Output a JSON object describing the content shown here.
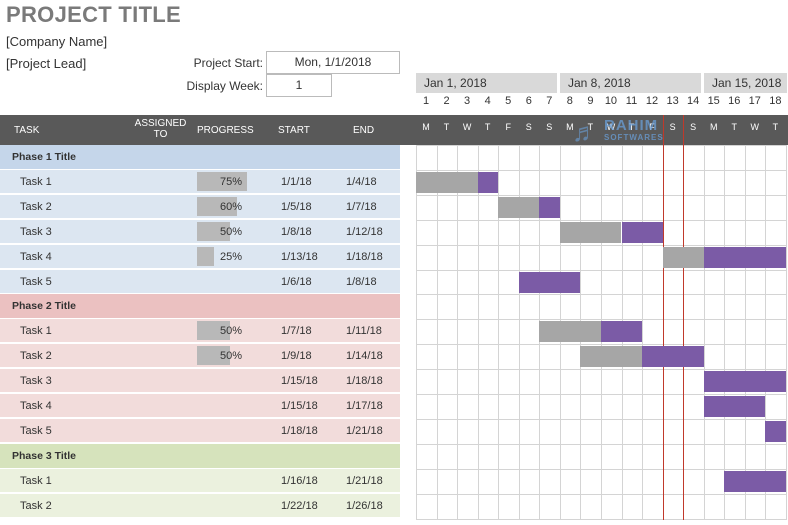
{
  "project": {
    "title": "PROJECT TITLE",
    "company": "[Company Name]",
    "lead": "[Project Lead]",
    "start_label": "Project Start:",
    "start_value": "Mon, 1/1/2018",
    "week_label": "Display Week:",
    "week_value": "1"
  },
  "timeline": {
    "weeks": [
      "Jan 1, 2018",
      "Jan 8, 2018",
      "Jan 15, 2018"
    ],
    "day_numbers": [
      "1",
      "2",
      "3",
      "4",
      "5",
      "6",
      "7",
      "8",
      "9",
      "10",
      "11",
      "12",
      "13",
      "14",
      "15",
      "16",
      "17",
      "18"
    ],
    "day_letters": [
      "M",
      "T",
      "W",
      "T",
      "F",
      "S",
      "S",
      "M",
      "T",
      "W",
      "T",
      "F",
      "S",
      "S",
      "M",
      "T",
      "W",
      "T"
    ]
  },
  "columns": {
    "task": "TASK",
    "assigned": "ASSIGNED TO",
    "progress": "PROGRESS",
    "start": "START",
    "end": "END"
  },
  "watermark": {
    "line1": "RAHIM",
    "line2": "SOFTWARES"
  },
  "phases": [
    {
      "title": "Phase 1 Title",
      "tasks": [
        {
          "name": "Task 1",
          "progress": "75%",
          "start": "1/1/18",
          "end": "1/4/18"
        },
        {
          "name": "Task 2",
          "progress": "60%",
          "start": "1/5/18",
          "end": "1/7/18"
        },
        {
          "name": "Task 3",
          "progress": "50%",
          "start": "1/8/18",
          "end": "1/12/18"
        },
        {
          "name": "Task 4",
          "progress": "25%",
          "start": "1/13/18",
          "end": "1/18/18"
        },
        {
          "name": "Task 5",
          "progress": "",
          "start": "1/6/18",
          "end": "1/8/18"
        }
      ]
    },
    {
      "title": "Phase 2 Title",
      "tasks": [
        {
          "name": "Task 1",
          "progress": "50%",
          "start": "1/7/18",
          "end": "1/11/18"
        },
        {
          "name": "Task 2",
          "progress": "50%",
          "start": "1/9/18",
          "end": "1/14/18"
        },
        {
          "name": "Task 3",
          "progress": "",
          "start": "1/15/18",
          "end": "1/18/18"
        },
        {
          "name": "Task 4",
          "progress": "",
          "start": "1/15/18",
          "end": "1/17/18"
        },
        {
          "name": "Task 5",
          "progress": "",
          "start": "1/18/18",
          "end": "1/21/18"
        }
      ]
    },
    {
      "title": "Phase 3 Title",
      "tasks": [
        {
          "name": "Task 1",
          "progress": "",
          "start": "1/16/18",
          "end": "1/21/18"
        },
        {
          "name": "Task 2",
          "progress": "",
          "start": "1/22/18",
          "end": "1/26/18"
        }
      ]
    }
  ]
}
